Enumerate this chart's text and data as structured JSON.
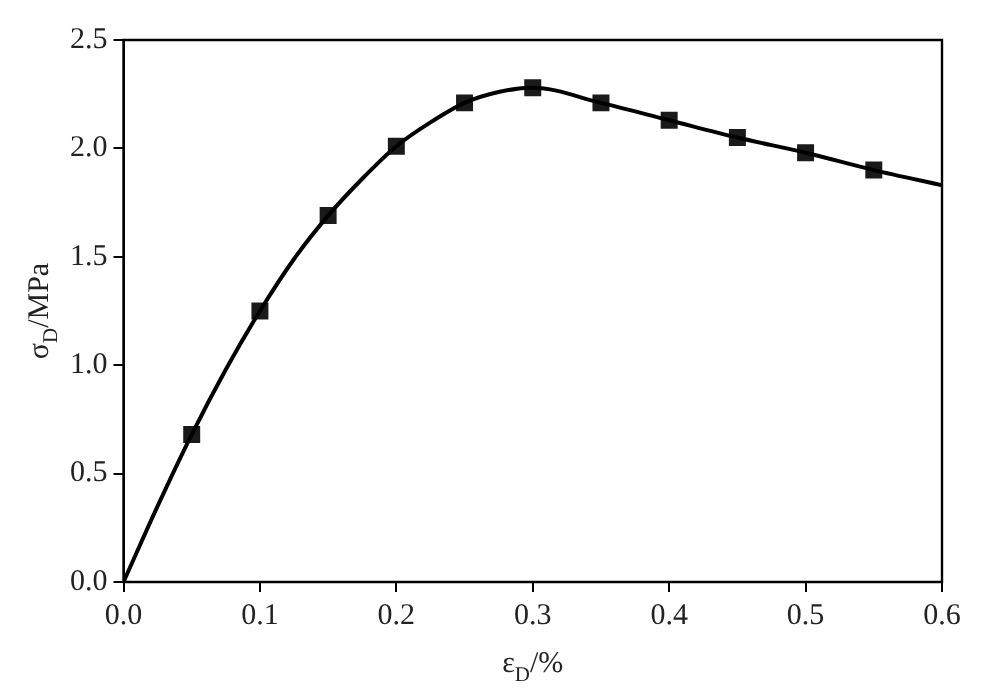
{
  "chart_data": {
    "type": "line",
    "xlabel": "ε$_{D}$/%",
    "ylabel": "σ$_{D}$/MPa",
    "xlim": [
      0,
      0.6
    ],
    "ylim": [
      0,
      2.5
    ],
    "xticks": [
      {
        "value": 0,
        "label": "0.0"
      },
      {
        "value": 0.1,
        "label": "0.1"
      },
      {
        "value": 0.2,
        "label": "0.2"
      },
      {
        "value": 0.3,
        "label": "0.3"
      },
      {
        "value": 0.4,
        "label": "0.4"
      },
      {
        "value": 0.5,
        "label": "0.5"
      },
      {
        "value": 0.6,
        "label": "0.6"
      }
    ],
    "yticks": [
      {
        "value": 0,
        "label": "0.0"
      },
      {
        "value": 0.5,
        "label": "0.5"
      },
      {
        "value": 1,
        "label": "1.0"
      },
      {
        "value": 1.5,
        "label": "1.5"
      },
      {
        "value": 2,
        "label": "2.0"
      },
      {
        "value": 2.5,
        "label": "2.5"
      }
    ],
    "grid": false,
    "series": [
      {
        "type": "line",
        "marker": "none",
        "color": "#000000",
        "x": [
          0,
          0.025,
          0.05,
          0.075,
          0.1,
          0.125,
          0.15,
          0.175,
          0.2,
          0.225,
          0.25,
          0.275,
          0.3,
          0.35,
          0.4,
          0.45,
          0.5,
          0.55,
          0.6
        ],
        "values": [
          0,
          0.35,
          0.68,
          0.98,
          1.25,
          1.49,
          1.69,
          1.86,
          2.01,
          2.12,
          2.21,
          2.26,
          2.28,
          2.21,
          2.13,
          2.05,
          1.98,
          1.9,
          1.83
        ]
      },
      {
        "type": "scatter",
        "marker": "square",
        "color": "#1a1a1a",
        "x": [
          0.05,
          0.1,
          0.15,
          0.2,
          0.25,
          0.3,
          0.35,
          0.4,
          0.45,
          0.5,
          0.55
        ],
        "values": [
          0.68,
          1.25,
          1.69,
          2.01,
          2.21,
          2.28,
          2.21,
          2.13,
          2.05,
          1.98,
          1.9
        ]
      }
    ]
  }
}
